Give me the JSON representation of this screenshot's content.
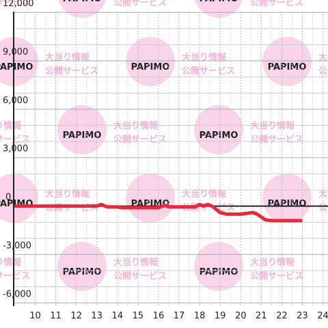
{
  "chart_data": {
    "type": "line",
    "x": [
      9,
      13,
      13.2,
      13.5,
      14,
      14.2,
      16,
      16.3,
      16.5,
      17.8,
      18,
      18.2,
      18.4,
      18.6,
      19,
      19.3,
      20,
      20.3,
      20.6,
      20.8,
      21.2,
      21.5,
      23
    ],
    "series": [
      {
        "color": "#e8283c",
        "values": [
          0,
          0,
          100,
          -50,
          -50,
          -100,
          -100,
          50,
          -50,
          -50,
          100,
          0,
          100,
          0,
          -400,
          -500,
          -500,
          -450,
          -400,
          -500,
          -850,
          -900,
          -900
        ]
      }
    ],
    "xlim": [
      8.95,
      24.25
    ],
    "xticks": [
      10,
      11,
      12,
      13,
      14,
      15,
      16,
      17,
      18,
      19,
      20,
      21,
      22,
      23,
      24
    ],
    "ylim": [
      -6200,
      12050
    ],
    "yticks": [
      {
        "value": -6000,
        "label": "-6,000"
      },
      {
        "value": -3000,
        "label": "-3,000"
      },
      0,
      {
        "value": 3000,
        "label": "3,000"
      },
      {
        "value": 6000,
        "label": "6,000"
      },
      {
        "value": 9000,
        "label": "9,000"
      },
      {
        "value": 12000,
        "label": "12,000"
      }
    ],
    "grid": true
  },
  "watermark": {
    "brand": "PAPIMO",
    "lines": [
      "大当り情報",
      "公開サービス"
    ]
  }
}
